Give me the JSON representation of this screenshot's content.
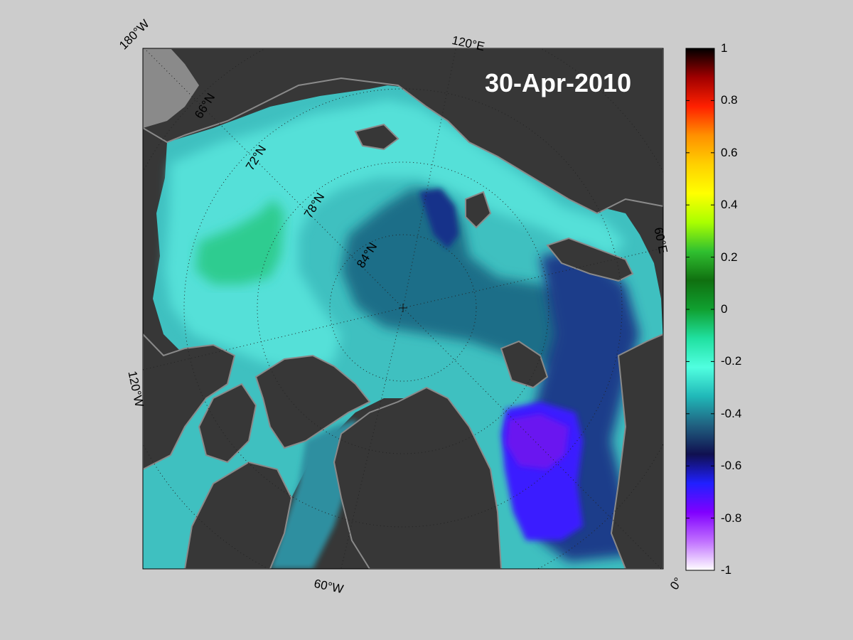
{
  "map": {
    "date": "30-Apr-2010",
    "projection": "north polar stereographic",
    "longitude_labels": [
      "180°W",
      "120°E",
      "60°E",
      "0°",
      "60°W",
      "120°W"
    ],
    "latitude_labels": [
      "66°N",
      "72°N",
      "78°N",
      "84°N"
    ],
    "land_color": "#373737",
    "coast_color": "#8a8a8a"
  },
  "colorbar": {
    "range": [
      -1,
      1
    ],
    "ticks": [
      "1",
      "0.8",
      "0.6",
      "0.4",
      "0.2",
      "0",
      "-0.2",
      "-0.4",
      "-0.6",
      "-0.8",
      "-1"
    ],
    "colors_top_to_bottom": [
      "#000000",
      "#a00000",
      "#ff2000",
      "#ff9000",
      "#ffd000",
      "#ffff00",
      "#aaff00",
      "#30c030",
      "#107010",
      "#10a030",
      "#20e0a0",
      "#50ffe0",
      "#20b8b8",
      "#206080",
      "#101050",
      "#2020ff",
      "#8000ff",
      "#c070ff",
      "#ffffff"
    ]
  }
}
